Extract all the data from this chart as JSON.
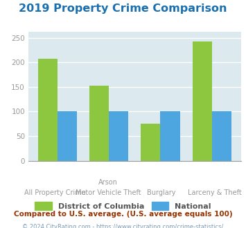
{
  "title": "2019 Property Crime Comparison",
  "title_color": "#1a6faf",
  "x_labels_line1": [
    "All Property Crime",
    "Arson",
    "Burglary",
    "Larceny & Theft"
  ],
  "x_labels_line2": [
    "",
    "Motor Vehicle Theft",
    "",
    ""
  ],
  "dc_values": [
    207,
    152,
    76,
    243
  ],
  "national_values": [
    100,
    100,
    100,
    100
  ],
  "dc_color": "#8dc63f",
  "national_color": "#4da6e0",
  "fig_bg_color": "#ffffff",
  "plot_bg_color": "#dce9ef",
  "ylim": [
    0,
    262
  ],
  "yticks": [
    0,
    50,
    100,
    150,
    200,
    250
  ],
  "legend_dc": "District of Columbia",
  "legend_national": "National",
  "footnote1": "Compared to U.S. average. (U.S. average equals 100)",
  "footnote2": "© 2024 CityRating.com - https://www.cityrating.com/crime-statistics/",
  "footnote1_color": "#993300",
  "footnote2_color": "#7a9bb5",
  "tick_color": "#999999",
  "grid_color": "#ffffff",
  "bar_width": 0.38
}
